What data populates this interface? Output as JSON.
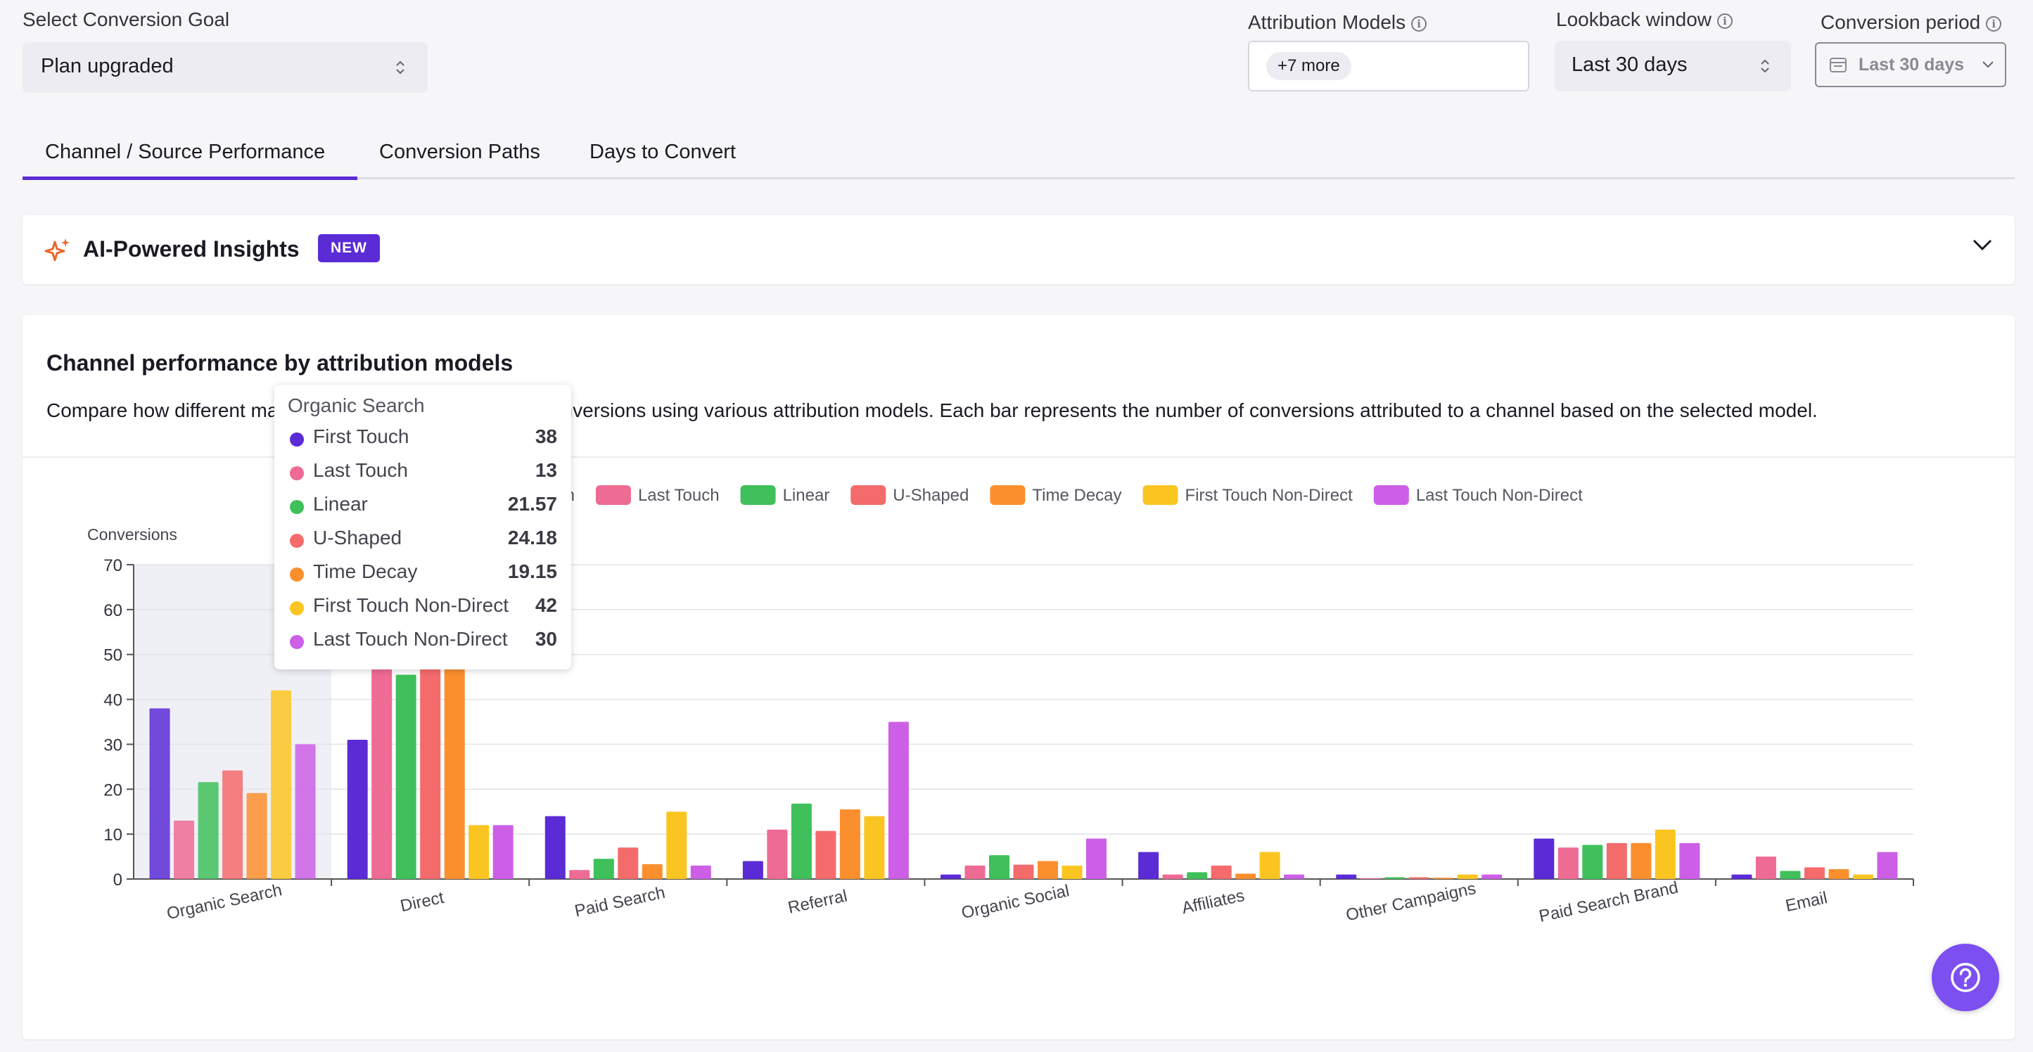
{
  "filters": {
    "goal_label": "Select Conversion Goal",
    "goal_value": "Plan upgraded",
    "attribution_label": "Attribution Models",
    "attribution_chip": "+7 more",
    "lookback_label": "Lookback window",
    "lookback_value": "Last 30 days",
    "period_label": "Conversion period",
    "period_value": "Last 30 days"
  },
  "tabs": [
    {
      "label": "Channel / Source Performance",
      "active": true
    },
    {
      "label": "Conversion Paths",
      "active": false
    },
    {
      "label": "Days to Convert",
      "active": false
    }
  ],
  "insights": {
    "title": "AI-Powered Insights",
    "badge": "NEW"
  },
  "chart_card": {
    "title": "Channel performance by attribution models",
    "description": "Compare how different marketing channels contribute to conversions using various attribution models. Each bar represents the number of conversions attributed to a channel based on the selected model."
  },
  "tooltip": {
    "title": "Organic Search",
    "rows": [
      {
        "name": "First Touch",
        "value": "38"
      },
      {
        "name": "Last Touch",
        "value": "13"
      },
      {
        "name": "Linear",
        "value": "21.57"
      },
      {
        "name": "U-Shaped",
        "value": "24.18"
      },
      {
        "name": "Time Decay",
        "value": "19.15"
      },
      {
        "name": "First Touch Non-Direct",
        "value": "42"
      },
      {
        "name": "Last Touch Non-Direct",
        "value": "30"
      }
    ]
  },
  "colors": {
    "accent": "#5b2bd6",
    "series": [
      "#5b2bd6",
      "#ee6b94",
      "#3fc05a",
      "#f46b6b",
      "#fb8f2e",
      "#fbc521",
      "#cc5fe6"
    ]
  },
  "chart_data": {
    "type": "bar",
    "ylabel": "Conversions",
    "ylim": [
      0,
      70
    ],
    "yticks": [
      0,
      10,
      20,
      30,
      40,
      50,
      60,
      70
    ],
    "grid": true,
    "legend_position": "top",
    "categories": [
      "Organic Search",
      "Direct",
      "Paid Search",
      "Referral",
      "Organic Social",
      "Affiliates",
      "Other Campaigns",
      "Paid Search Brand",
      "Email"
    ],
    "highlighted_category": "Organic Search",
    "series": [
      {
        "name": "First Touch",
        "values": [
          38,
          31,
          14,
          4,
          1,
          6,
          1,
          9,
          1
        ]
      },
      {
        "name": "Last Touch",
        "values": [
          13,
          62,
          2,
          11,
          3,
          1,
          0.2,
          7,
          5
        ]
      },
      {
        "name": "Linear",
        "values": [
          21.57,
          45.5,
          4.5,
          16.8,
          5.3,
          1.5,
          0.4,
          7.6,
          1.8
        ]
      },
      {
        "name": "U-Shaped",
        "values": [
          24.18,
          50,
          7,
          10.7,
          3.2,
          3,
          0.4,
          8,
          2.6
        ]
      },
      {
        "name": "Time Decay",
        "values": [
          19.15,
          48,
          3.3,
          15.5,
          4,
          1.2,
          0.3,
          8,
          2.2
        ]
      },
      {
        "name": "First Touch Non-Direct",
        "values": [
          42,
          12,
          15,
          14,
          3,
          6,
          1,
          11,
          1
        ]
      },
      {
        "name": "Last Touch Non-Direct",
        "values": [
          30,
          12,
          3,
          35,
          9,
          1,
          1,
          8,
          6
        ]
      }
    ]
  },
  "help": {
    "icon": "help-icon"
  }
}
